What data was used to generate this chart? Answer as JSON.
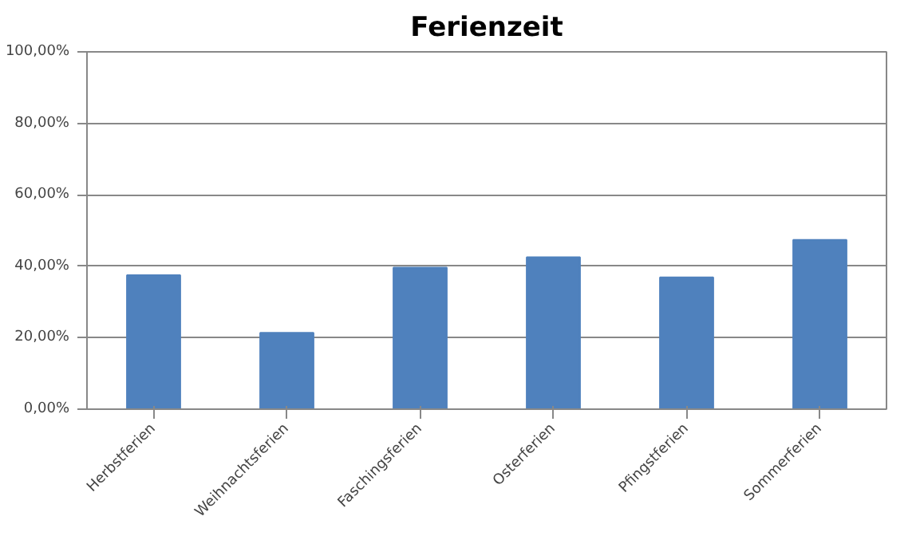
{
  "chart_data": {
    "type": "bar",
    "title": "Ferienzeit",
    "categories": [
      "Herbstferien",
      "Weihnachtsferien",
      "Faschingsferien",
      "Osterferien",
      "Pfingstferien",
      "Sommerferien"
    ],
    "values": [
      37.5,
      21.4,
      39.6,
      42.5,
      36.9,
      47.4
    ],
    "color": "#4f81bd",
    "ylim": [
      0,
      100
    ],
    "yticks": [
      {
        "value": 0,
        "label": "0,00%"
      },
      {
        "value": 20,
        "label": "20,00%"
      },
      {
        "value": 40,
        "label": "40,00%"
      },
      {
        "value": 60,
        "label": "60,00%"
      },
      {
        "value": 80,
        "label": "80,00%"
      },
      {
        "value": 100,
        "label": "100,00%"
      }
    ],
    "grid": "y"
  }
}
